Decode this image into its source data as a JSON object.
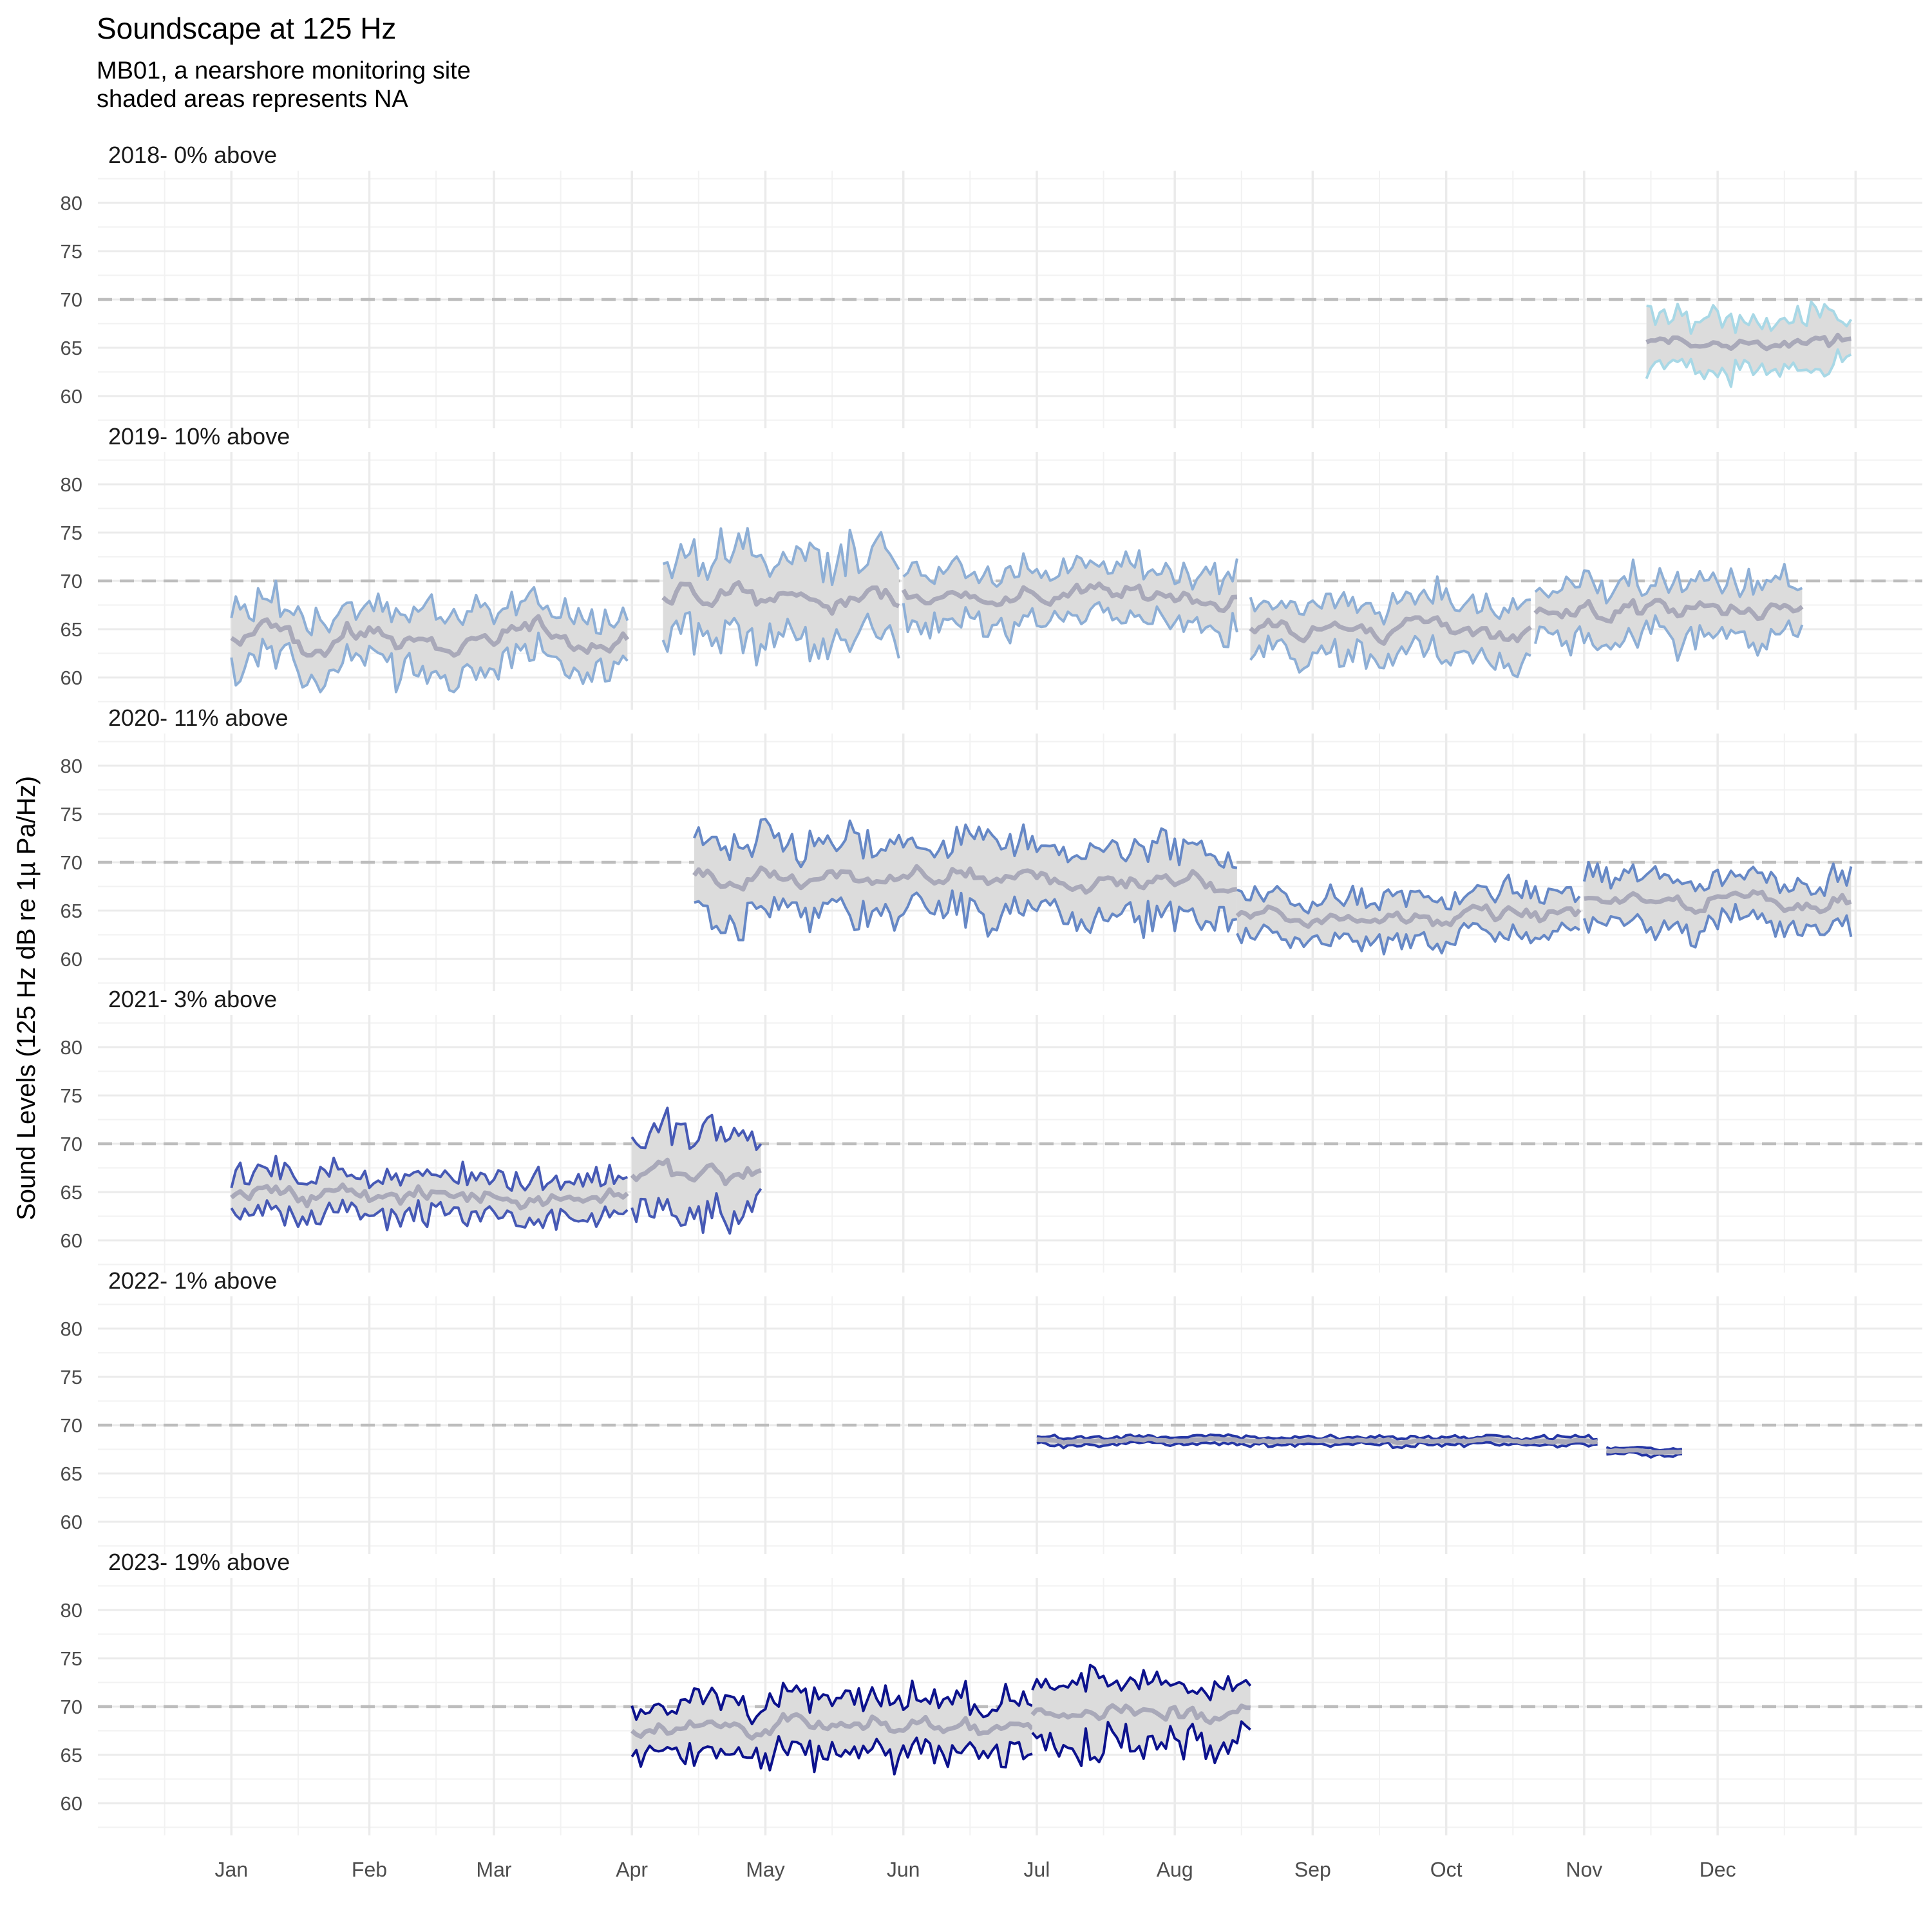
{
  "header": {
    "title": "Soundscape at 125 Hz",
    "subtitle_line1": "MB01, a nearshore monitoring site",
    "subtitle_line2": "shaded areas represents NA"
  },
  "colors": {
    "band_fill": "#dcdcdc",
    "median_line": "#a9a9b9",
    "threshold_line": "#bdbdbd",
    "grid": "#ebebeb",
    "grid_minor": "#f2f2f2"
  },
  "chart_data": {
    "type": "line",
    "ylabel": "Sound Levels (125 Hz dB re 1µ Pa/Hz)",
    "xlabel": "",
    "x_axis": "day of year",
    "x_tick_labels": [
      "Jan",
      "Feb",
      "Mar",
      "Apr",
      "May",
      "Jun",
      "Jul",
      "Aug",
      "Sep",
      "Oct",
      "Nov",
      "Dec"
    ],
    "y_ticks": [
      60,
      65,
      70,
      75,
      80
    ],
    "ylim": [
      58,
      82
    ],
    "threshold": 70,
    "grid": true,
    "legend": "none",
    "panels": [
      {
        "label": "2018- 0% above",
        "color": "#a8d8e6",
        "segments": [
          {
            "start": "Nov 15",
            "end": "Dec 31",
            "median": 65.5,
            "amp": 2.6,
            "var": 1.6
          }
        ]
      },
      {
        "label": "2019- 10% above",
        "color": "#8eafd6",
        "segments": [
          {
            "start": "Jan 1",
            "end": "Mar 31",
            "median": 64.0,
            "amp": 3.0,
            "var": 2.2
          },
          {
            "start": "Apr 8",
            "end": "May 31",
            "median": 68.0,
            "amp": 4.5,
            "var": 2.0
          },
          {
            "start": "Jun 1",
            "end": "Aug 15",
            "median": 68.5,
            "amp": 2.8,
            "var": 1.6
          },
          {
            "start": "Aug 18",
            "end": "Oct 20",
            "median": 65.0,
            "amp": 2.8,
            "var": 1.6
          },
          {
            "start": "Oct 21",
            "end": "Dec 20",
            "median": 67.0,
            "amp": 2.9,
            "var": 1.8
          }
        ]
      },
      {
        "label": "2020- 11% above",
        "color": "#6688c6",
        "segments": [
          {
            "start": "Apr 15",
            "end": "Aug 15",
            "median": 68.0,
            "amp": 3.6,
            "var": 1.8
          },
          {
            "start": "Aug 15",
            "end": "Oct 31",
            "median": 64.5,
            "amp": 2.2,
            "var": 1.4
          },
          {
            "start": "Nov 1",
            "end": "Dec 31",
            "median": 66.3,
            "amp": 2.4,
            "var": 1.5
          }
        ]
      },
      {
        "label": "2021- 3% above",
        "color": "#4659b5",
        "segments": [
          {
            "start": "Jan 1",
            "end": "Mar 31",
            "median": 64.5,
            "amp": 2.2,
            "var": 1.6
          },
          {
            "start": "Apr 1",
            "end": "Apr 30",
            "median": 67.0,
            "amp": 4.0,
            "var": 2.0
          }
        ]
      },
      {
        "label": "2022- 1% above",
        "color": "#2536a5",
        "segments": [
          {
            "start": "Jul 1",
            "end": "Nov 4",
            "median": 68.4,
            "amp": 0.4,
            "var": 0.3
          },
          {
            "start": "Nov 6",
            "end": "Nov 23",
            "median": 67.3,
            "amp": 0.35,
            "var": 0.2
          }
        ]
      },
      {
        "label": "2023- 19% above",
        "color": "#0c128d",
        "segments": [
          {
            "start": "Apr 1",
            "end": "Jun 30",
            "median": 68.0,
            "amp": 2.8,
            "var": 1.6
          },
          {
            "start": "Jun 30",
            "end": "Aug 18",
            "median": 69.5,
            "amp": 3.2,
            "var": 1.7
          }
        ]
      }
    ]
  }
}
